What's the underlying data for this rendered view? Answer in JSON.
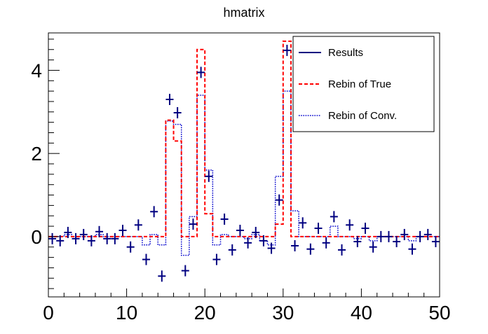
{
  "chart_data": {
    "type": "line",
    "title": "hmatrix",
    "xlabel": "",
    "ylabel": "",
    "xlim": [
      0,
      50
    ],
    "ylim": [
      -1.45,
      4.9
    ],
    "x_ticks": [
      0,
      10,
      20,
      30,
      40,
      50
    ],
    "x_tick_labels": [
      "0",
      "10",
      "20",
      "30",
      "40",
      "50"
    ],
    "y_ticks": [
      0,
      2,
      4
    ],
    "y_tick_labels": [
      "0",
      "2",
      "4"
    ],
    "grid": false,
    "legend_position": "top-right",
    "legend": [
      {
        "label": "Results",
        "style": "solid",
        "color": "#000080"
      },
      {
        "label": "Rebin of True",
        "style": "dashed",
        "color": "#ff0000"
      },
      {
        "label": "Rebin of Conv.",
        "style": "dotted",
        "color": "#0000cc"
      }
    ],
    "bin_edges": [
      0,
      1,
      2,
      3,
      4,
      5,
      6,
      7,
      8,
      9,
      10,
      11,
      12,
      13,
      14,
      15,
      16,
      17,
      18,
      19,
      20,
      21,
      22,
      23,
      24,
      25,
      26,
      27,
      28,
      29,
      30,
      31,
      32,
      33,
      34,
      35,
      36,
      37,
      38,
      39,
      40,
      41,
      42,
      43,
      44,
      45,
      46,
      47,
      48,
      49,
      50
    ],
    "series": [
      {
        "name": "Results",
        "kind": "points",
        "color": "#000080",
        "x": [
          0.5,
          1.5,
          2.5,
          3.5,
          4.5,
          5.5,
          6.5,
          7.5,
          8.5,
          9.5,
          10.5,
          11.5,
          12.5,
          13.5,
          14.5,
          15.5,
          16.5,
          17.5,
          18.5,
          19.5,
          20.5,
          21.5,
          22.5,
          23.5,
          24.5,
          25.5,
          26.5,
          27.5,
          28.5,
          29.5,
          30.5,
          31.5,
          32.5,
          33.5,
          34.5,
          35.5,
          36.5,
          37.5,
          38.5,
          39.5,
          40.5,
          41.5,
          42.5,
          43.5,
          44.5,
          45.5,
          46.5,
          47.5,
          48.5,
          49.5
        ],
        "values": [
          -0.05,
          -0.1,
          0.1,
          -0.05,
          0.05,
          -0.1,
          0.12,
          -0.05,
          -0.05,
          0.15,
          -0.25,
          0.28,
          -0.55,
          0.6,
          -0.95,
          3.3,
          2.98,
          -0.82,
          0.3,
          3.95,
          1.45,
          -0.55,
          0.42,
          -0.32,
          0.15,
          -0.15,
          0.1,
          -0.1,
          -0.28,
          0.88,
          4.48,
          -0.22,
          0.33,
          -0.3,
          0.2,
          -0.15,
          0.48,
          -0.32,
          0.28,
          -0.12,
          0.2,
          -0.25,
          0.0,
          0.0,
          -0.12,
          0.05,
          -0.3,
          0.0,
          0.05,
          -0.12
        ]
      },
      {
        "name": "Rebin of True",
        "kind": "step",
        "color": "#ff0000",
        "values": [
          0,
          0,
          0,
          0,
          0,
          0,
          0,
          0,
          0,
          0,
          0,
          0,
          0,
          0,
          0,
          2.8,
          2.3,
          0,
          0,
          4.5,
          0.55,
          0,
          0,
          0,
          0,
          0,
          0,
          0,
          0,
          0.3,
          4.7,
          0,
          0,
          0,
          0,
          0,
          0,
          0,
          0,
          0,
          0,
          0,
          0,
          0,
          0,
          0,
          0,
          0,
          0,
          0
        ]
      },
      {
        "name": "Rebin of Conv.",
        "kind": "step",
        "color": "#0000cc",
        "values": [
          0,
          0,
          0.05,
          0,
          0,
          0,
          0.05,
          0,
          0,
          0,
          0,
          0,
          -0.2,
          0.05,
          -0.2,
          2.78,
          2.7,
          -0.45,
          0.48,
          3.4,
          1.6,
          -0.2,
          0.05,
          0,
          0,
          -0.05,
          0.05,
          -0.1,
          -0.2,
          1.45,
          3.5,
          0.62,
          0,
          0,
          0,
          0,
          0.25,
          0,
          0,
          -0.05,
          0,
          -0.1,
          0,
          0,
          0,
          0,
          -0.1,
          0,
          0,
          0
        ]
      }
    ]
  }
}
